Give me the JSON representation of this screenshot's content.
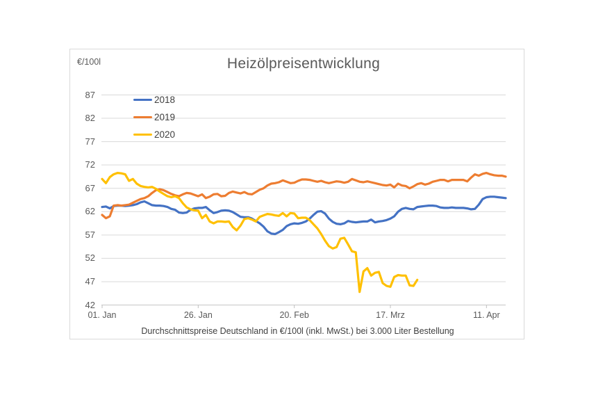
{
  "chart": {
    "unit_label": "€/100l",
    "title": "Heizölpreisentwicklung",
    "footer": "Durchschnittspreise Deutschland in €/100l (inkl. MwSt.) bei 3.000 Liter Bestellung"
  },
  "colors": {
    "grid": "#d9d9d9",
    "axis": "#c6c6c6",
    "tick": "#bfbfbf",
    "axis_text": "#595959",
    "title_text": "#595959",
    "body_text": "#404040"
  },
  "chart_data": {
    "type": "line",
    "title": "Heizölpreisentwicklung",
    "ylabel": "€/100l",
    "xlabel": "",
    "ylim": [
      42,
      87
    ],
    "yticks": [
      42,
      47,
      52,
      57,
      62,
      67,
      72,
      77,
      82,
      87
    ],
    "grid": "horizontal",
    "legend_position": "top-left-inside",
    "x_unit": "days since Jan 1",
    "days_total": 105,
    "xticks": [
      {
        "label": "01. Jan",
        "day": 0
      },
      {
        "label": "26. Jan",
        "day": 25
      },
      {
        "label": "20. Feb",
        "day": 50
      },
      {
        "label": "17. Mrz",
        "day": 75
      },
      {
        "label": "11. Apr",
        "day": 100
      }
    ],
    "series": [
      {
        "name": "2018",
        "color": "#4472C4",
        "values": [
          63.0,
          63.1,
          62.7,
          63.2,
          63.3,
          63.3,
          63.2,
          63.3,
          63.4,
          63.6,
          64.0,
          64.2,
          63.8,
          63.4,
          63.3,
          63.3,
          63.2,
          63.0,
          62.6,
          62.4,
          61.8,
          61.7,
          61.8,
          62.4,
          62.7,
          62.8,
          62.8,
          63.0,
          62.3,
          61.7,
          61.9,
          62.2,
          62.3,
          62.2,
          61.9,
          61.4,
          60.9,
          60.8,
          60.8,
          60.5,
          60.0,
          59.5,
          58.8,
          57.8,
          57.3,
          57.2,
          57.6,
          58.1,
          58.9,
          59.3,
          59.5,
          59.4,
          59.6,
          59.9,
          60.5,
          61.3,
          62.0,
          62.1,
          61.6,
          60.5,
          59.8,
          59.4,
          59.3,
          59.5,
          60.0,
          59.8,
          59.7,
          59.8,
          59.9,
          59.9,
          60.3,
          59.7,
          59.9,
          60.0,
          60.2,
          60.5,
          61.0,
          62.0,
          62.6,
          62.8,
          62.6,
          62.5,
          63.0,
          63.1,
          63.2,
          63.3,
          63.3,
          63.2,
          62.9,
          62.8,
          62.8,
          62.9,
          62.8,
          62.8,
          62.8,
          62.7,
          62.5,
          62.6,
          63.5,
          64.7,
          65.1,
          65.2,
          65.2,
          65.1,
          65.0,
          64.9
        ]
      },
      {
        "name": "2019",
        "color": "#ED7D31",
        "values": [
          61.3,
          60.6,
          61.0,
          63.3,
          63.4,
          63.3,
          63.4,
          63.5,
          63.9,
          64.3,
          64.7,
          64.9,
          65.3,
          66.0,
          66.6,
          66.8,
          66.6,
          66.2,
          65.8,
          65.5,
          65.3,
          65.7,
          66.0,
          65.9,
          65.6,
          65.3,
          65.7,
          64.9,
          65.2,
          65.7,
          65.8,
          65.3,
          65.4,
          66.0,
          66.3,
          66.1,
          65.9,
          66.2,
          65.8,
          65.7,
          66.2,
          66.7,
          67.0,
          67.6,
          68.0,
          68.1,
          68.3,
          68.7,
          68.4,
          68.1,
          68.2,
          68.6,
          68.9,
          68.9,
          68.8,
          68.6,
          68.4,
          68.6,
          68.3,
          68.1,
          68.3,
          68.5,
          68.4,
          68.2,
          68.4,
          69.0,
          68.7,
          68.4,
          68.3,
          68.5,
          68.3,
          68.1,
          67.9,
          67.7,
          67.6,
          67.8,
          67.2,
          68.0,
          67.6,
          67.5,
          67.0,
          67.4,
          67.9,
          68.1,
          67.8,
          68.0,
          68.4,
          68.6,
          68.8,
          68.8,
          68.5,
          68.8,
          68.8,
          68.8,
          68.8,
          68.5,
          69.3,
          70.0,
          69.7,
          70.1,
          70.3,
          70.0,
          69.8,
          69.7,
          69.7,
          69.5
        ]
      },
      {
        "name": "2020",
        "color": "#FFC000",
        "values": [
          69.0,
          68.1,
          69.4,
          70.0,
          70.3,
          70.2,
          70.0,
          68.6,
          69.0,
          68.0,
          67.5,
          67.3,
          67.2,
          67.3,
          66.9,
          66.3,
          65.8,
          65.3,
          65.1,
          65.3,
          64.9,
          63.8,
          62.9,
          62.5,
          62.3,
          62.2,
          60.6,
          61.3,
          59.9,
          59.5,
          59.9,
          59.9,
          59.8,
          59.9,
          58.7,
          58.0,
          59.0,
          60.4,
          60.6,
          60.3,
          59.9,
          60.9,
          61.2,
          61.5,
          61.4,
          61.2,
          61.1,
          61.7,
          61.0,
          61.7,
          61.6,
          60.6,
          60.7,
          60.7,
          60.2,
          59.3,
          58.4,
          57.2,
          55.8,
          54.6,
          54.1,
          54.4,
          56.2,
          56.4,
          55.0,
          53.5,
          53.3,
          44.8,
          49.2,
          49.9,
          48.3,
          48.9,
          49.1,
          46.7,
          46.1,
          45.9,
          48.0,
          48.4,
          48.3,
          48.3,
          46.2,
          46.1,
          47.4
        ]
      }
    ]
  }
}
